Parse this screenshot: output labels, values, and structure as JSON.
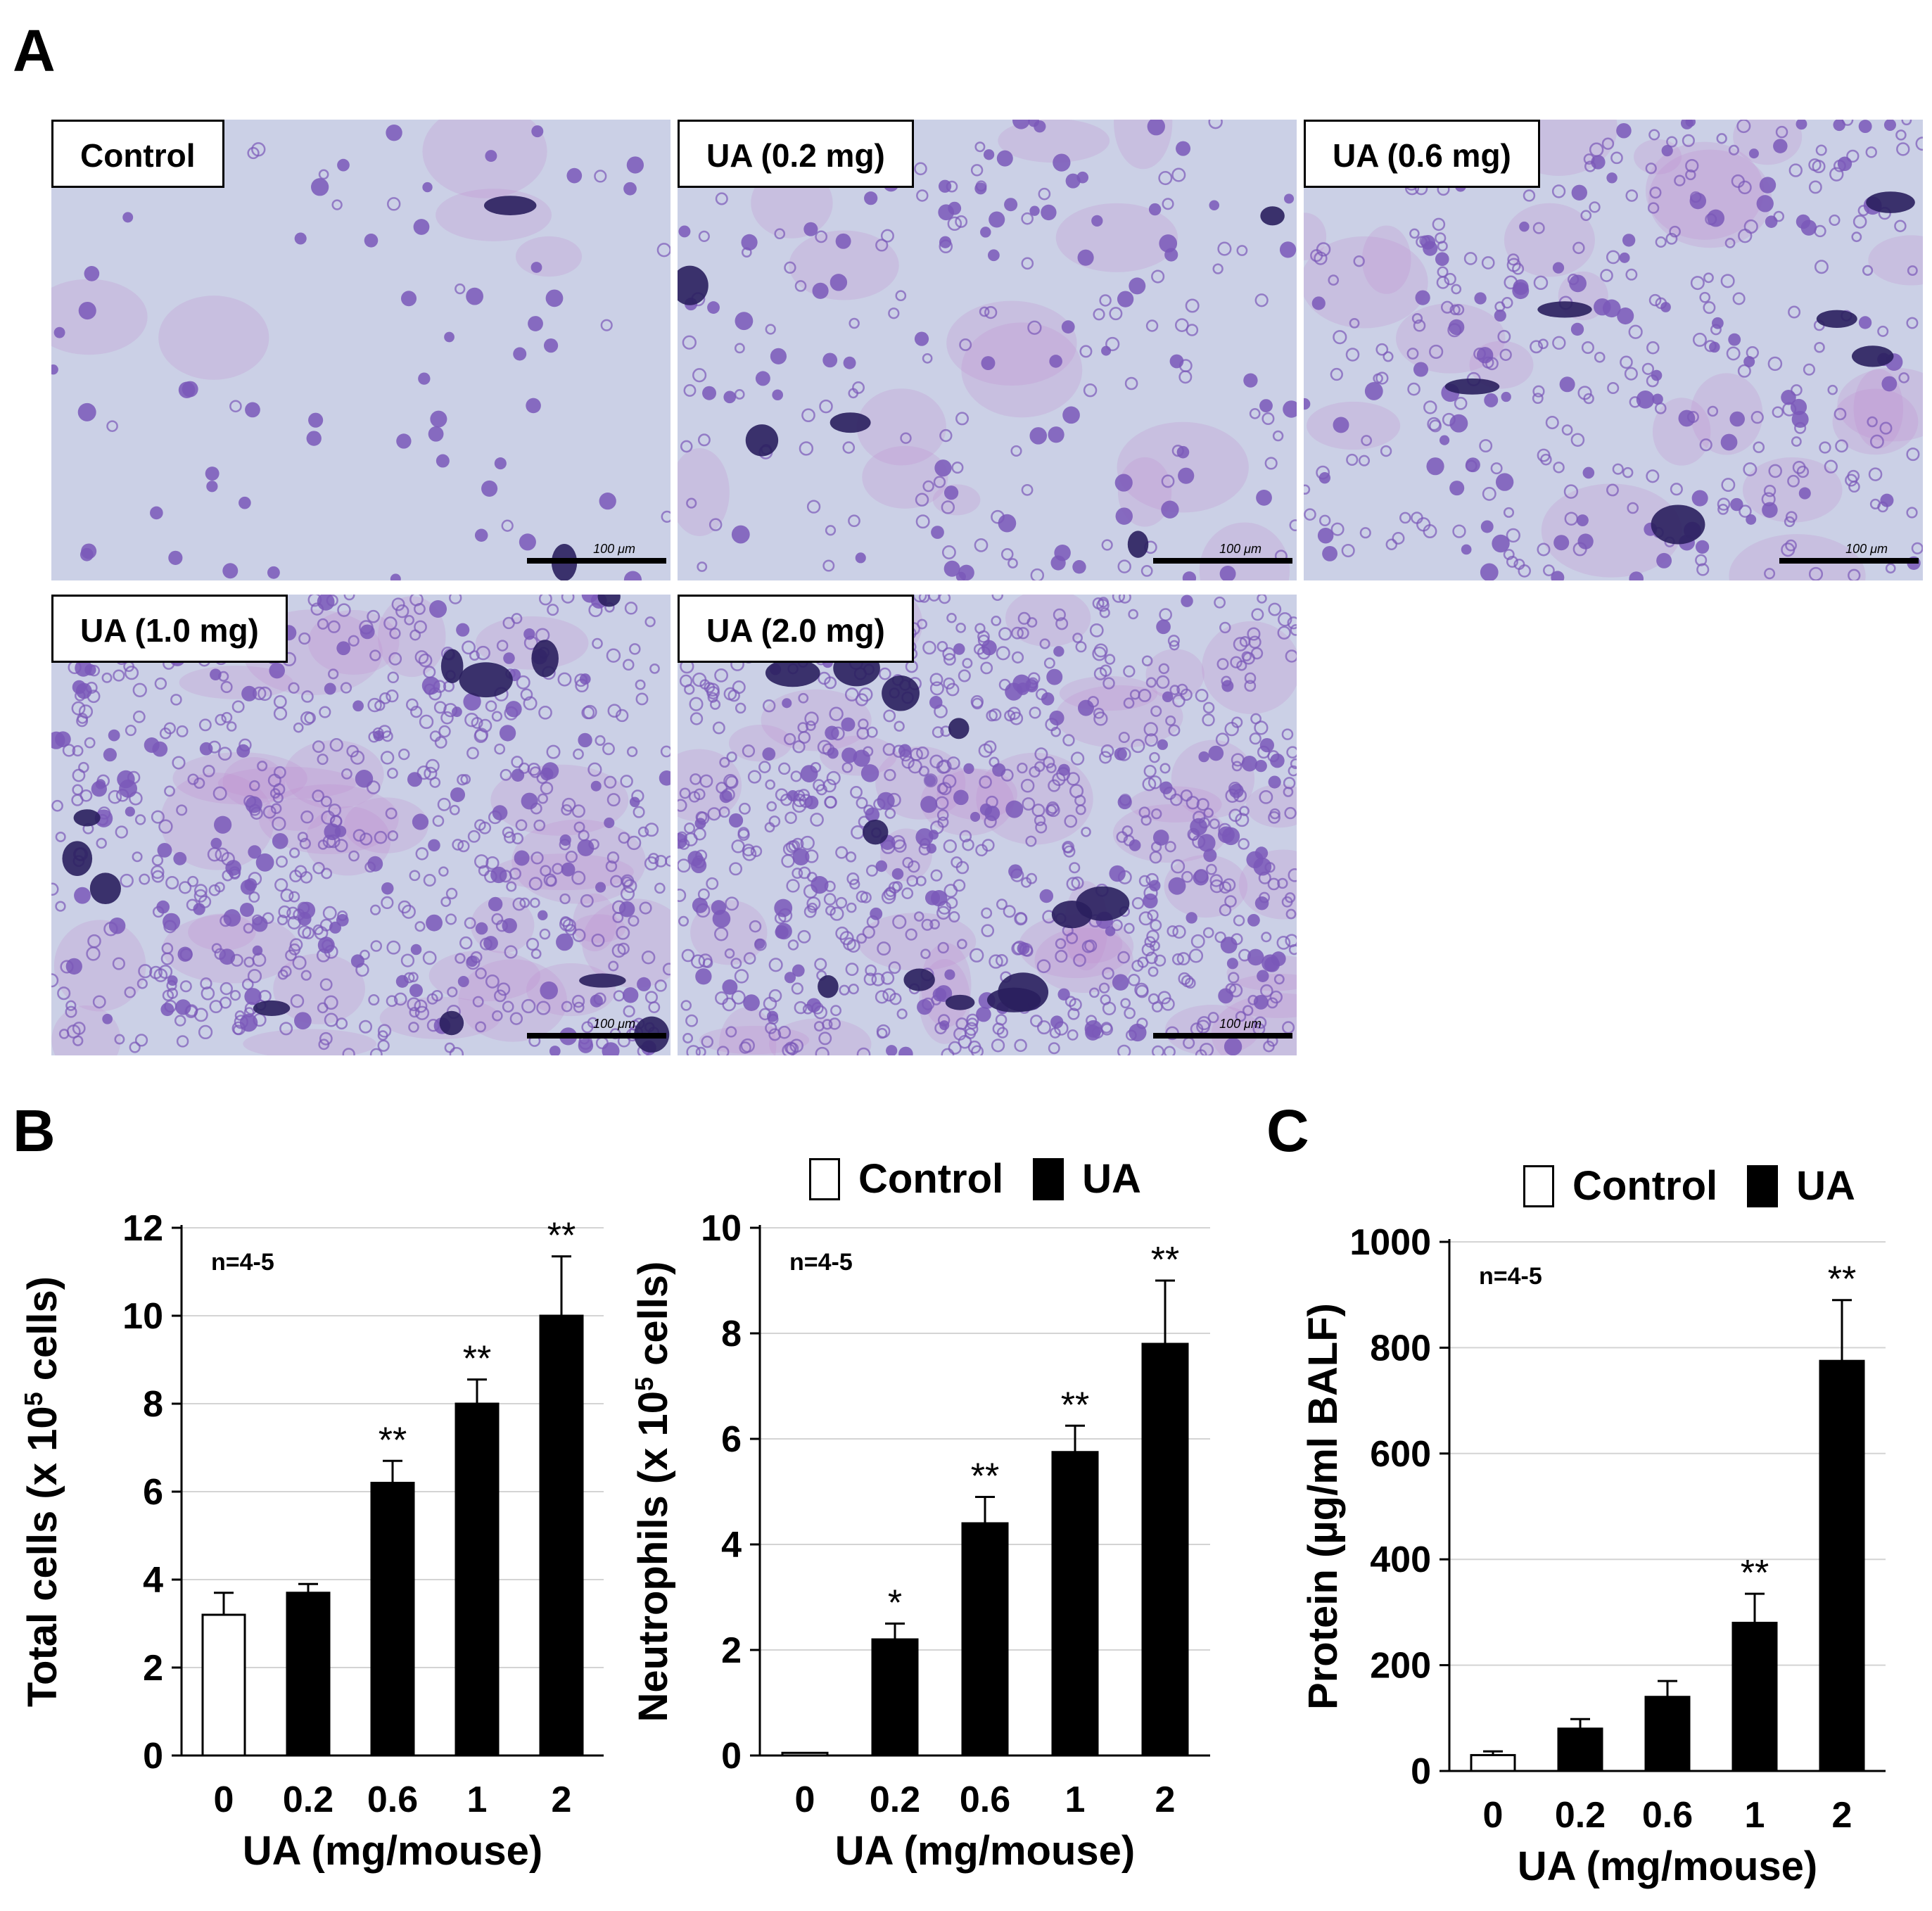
{
  "figure": {
    "panel_letters": {
      "a": "A",
      "b": "B",
      "c": "C"
    },
    "micrographs": [
      {
        "label": "Control",
        "scale": "100 μm",
        "density": 0.12
      },
      {
        "label": "UA (0.2 mg)",
        "scale": "100 μm",
        "density": 0.35
      },
      {
        "label": "UA (0.6 mg)",
        "scale": "100 μm",
        "density": 0.55
      },
      {
        "label": "UA (1.0 mg)",
        "scale": "100 μm",
        "density": 0.8
      },
      {
        "label": "UA (2.0 mg)",
        "scale": "100 μm",
        "density": 0.9
      }
    ],
    "legend": {
      "control": "Control",
      "ua": "UA"
    },
    "colors": {
      "stain_dark": "#2a1f5e",
      "stain_cell": "#7a58b8",
      "stain_pink": "#c08ad0",
      "background": "#cbd0e6"
    }
  },
  "chart_data": [
    {
      "type": "bar",
      "panel": "B",
      "categories": [
        "0",
        "0.2",
        "0.6",
        "1",
        "2"
      ],
      "values": [
        3.2,
        3.7,
        6.2,
        8.0,
        10.0
      ],
      "errors": [
        0.5,
        0.2,
        0.5,
        0.55,
        1.35
      ],
      "significance": [
        "",
        "",
        "**",
        "**",
        "**"
      ],
      "fill": [
        "open",
        "filled",
        "filled",
        "filled",
        "filled"
      ],
      "ylabel": "Total cells (x 10",
      "ylabel_sup": "5",
      "ylabel_end": " cells)",
      "xlabel": "UA (mg/mouse)",
      "annotation": "n=4-5",
      "ylim": [
        0,
        12
      ],
      "yticks": [
        "0",
        "2",
        "4",
        "6",
        "8",
        "10",
        "12"
      ],
      "grid": true
    },
    {
      "type": "bar",
      "panel": "B",
      "categories": [
        "0",
        "0.2",
        "0.6",
        "1",
        "2"
      ],
      "values": [
        0.05,
        2.2,
        4.4,
        5.75,
        7.8
      ],
      "errors": [
        0,
        0.3,
        0.5,
        0.5,
        1.2
      ],
      "significance": [
        "",
        "*",
        "**",
        "**",
        "**"
      ],
      "fill": [
        "open",
        "filled",
        "filled",
        "filled",
        "filled"
      ],
      "ylabel": "Neutrophils (x 10",
      "ylabel_sup": "5",
      "ylabel_end": " cells)",
      "xlabel": "UA (mg/mouse)",
      "annotation": "n=4-5",
      "ylim": [
        0,
        10
      ],
      "yticks": [
        "0",
        "2",
        "4",
        "6",
        "8",
        "10"
      ],
      "grid": true,
      "legend": [
        "Control",
        "UA"
      ]
    },
    {
      "type": "bar",
      "panel": "C",
      "categories": [
        "0",
        "0.2",
        "0.6",
        "1",
        "2"
      ],
      "values": [
        30,
        80,
        140,
        280,
        775
      ],
      "errors": [
        7,
        18,
        30,
        55,
        115
      ],
      "significance": [
        "",
        "",
        "",
        "**",
        "**"
      ],
      "fill": [
        "open",
        "filled",
        "filled",
        "filled",
        "filled"
      ],
      "ylabel": "Protein (µg/ml BALF)",
      "ylabel_sup": "",
      "ylabel_end": "",
      "xlabel": "UA (mg/mouse)",
      "annotation": "n=4-5",
      "ylim": [
        0,
        1000
      ],
      "yticks": [
        "0",
        "200",
        "400",
        "600",
        "800",
        "1000"
      ],
      "grid": true,
      "legend": [
        "Control",
        "UA"
      ]
    }
  ]
}
